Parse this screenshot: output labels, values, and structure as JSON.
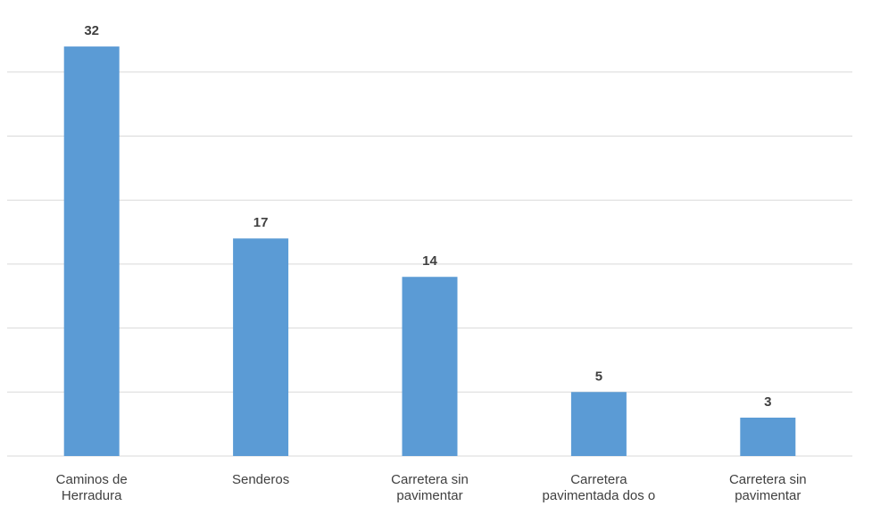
{
  "chart_data": {
    "type": "bar",
    "categories": [
      [
        "Caminos de",
        "Herradura"
      ],
      [
        "Senderos"
      ],
      [
        "Carretera sin",
        "pavimentar"
      ],
      [
        "Carretera",
        "pavimentada dos o"
      ],
      [
        "Carretera sin",
        "pavimentar"
      ]
    ],
    "values": [
      32,
      17,
      14,
      5,
      3
    ],
    "data_labels": [
      "32",
      "17",
      "14",
      "5",
      "3"
    ],
    "ylim": [
      0,
      35
    ],
    "y_gridlines": [
      5,
      10,
      15,
      20,
      25,
      30
    ],
    "grid": true,
    "legend": "none",
    "title": "",
    "xlabel": "",
    "ylabel": "",
    "colors": {
      "bar": "#5b9bd5",
      "gridline": "#d9d9d9",
      "text": "#404040"
    }
  }
}
